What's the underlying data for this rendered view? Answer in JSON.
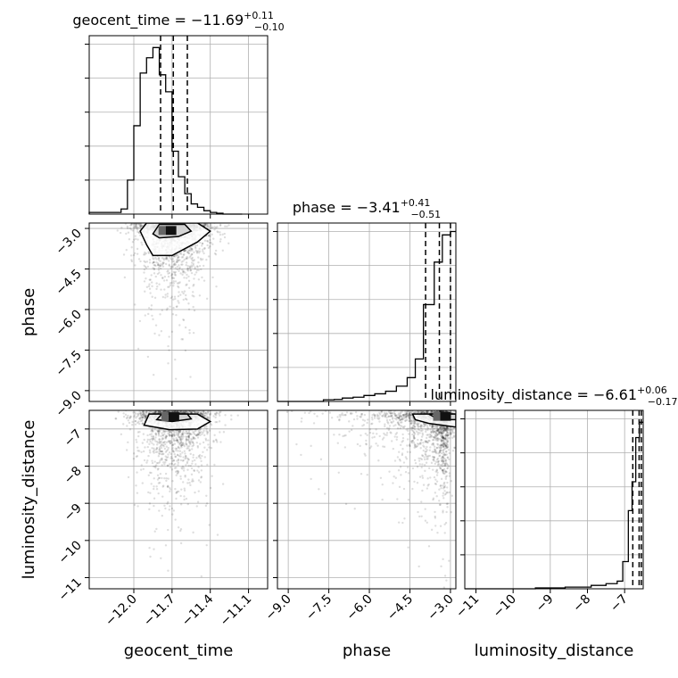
{
  "chart_data": {
    "type": "corner",
    "parameters": [
      "geocent_time",
      "phase",
      "luminosity_distance"
    ],
    "titles": [
      {
        "prefix": "geocent_time = ",
        "value": "−11.69",
        "upper": "+0.11",
        "lower": "−0.10"
      },
      {
        "prefix": "phase = ",
        "value": "−3.41",
        "upper": "+0.41",
        "lower": "−0.51"
      },
      {
        "prefix": "luminosity_distance = ",
        "value": "−6.61",
        "upper": "+0.06",
        "lower": "−0.17"
      }
    ],
    "axes": {
      "geocent_time": {
        "range": [
          -12.35,
          -10.95
        ],
        "ticks": [
          -12.0,
          -11.7,
          -11.4,
          -11.1
        ],
        "tick_labels": [
          "−12.0",
          "−11.7",
          "−11.4",
          "−11.1"
        ]
      },
      "phase": {
        "range": [
          -9.4,
          -2.8
        ],
        "ticks": [
          -9.0,
          -7.5,
          -6.0,
          -4.5,
          -3.0
        ],
        "tick_labels": [
          "−9.0",
          "−7.5",
          "−6.0",
          "−4.5",
          "−3.0"
        ]
      },
      "luminosity_distance": {
        "range": [
          -11.3,
          -6.5
        ],
        "ticks": [
          -11,
          -10,
          -9,
          -8,
          -7
        ],
        "tick_labels": [
          "−11",
          "−10",
          "−9",
          "−8",
          "−7"
        ]
      }
    },
    "histograms": [
      {
        "param": "geocent_time",
        "edges": [
          -12.35,
          -12.1,
          -12.05,
          -12.0,
          -11.95,
          -11.9,
          -11.85,
          -11.8,
          -11.75,
          -11.7,
          -11.65,
          -11.6,
          -11.55,
          -11.5,
          -11.45,
          -11.4,
          -11.35,
          -11.3,
          -11.25,
          -11.2,
          -11.15
        ],
        "heights": [
          0.01,
          0.03,
          0.2,
          0.52,
          0.83,
          0.92,
          0.98,
          0.82,
          0.72,
          0.37,
          0.22,
          0.12,
          0.06,
          0.04,
          0.02,
          0.01,
          0.005,
          0.0,
          0.0,
          0.0
        ],
        "quantiles": [
          -11.79,
          -11.69,
          -11.58
        ]
      },
      {
        "param": "phase",
        "edges": [
          -9.4,
          -7.7,
          -7.3,
          -7.0,
          -6.6,
          -6.2,
          -5.8,
          -5.4,
          -5.0,
          -4.6,
          -4.3,
          -4.0,
          -3.6,
          -3.3,
          -3.0,
          -2.8
        ],
        "heights": [
          0.0,
          0.01,
          0.012,
          0.02,
          0.025,
          0.035,
          0.045,
          0.06,
          0.09,
          0.14,
          0.25,
          0.57,
          0.82,
          0.98,
          1.0
        ],
        "quantiles": [
          -3.92,
          -3.41,
          -3.0
        ]
      },
      {
        "param": "luminosity_distance",
        "edges": [
          -11.3,
          -9.4,
          -8.6,
          -7.9,
          -7.5,
          -7.2,
          -7.05,
          -6.9,
          -6.8,
          -6.7,
          -6.6,
          -6.5
        ],
        "heights": [
          0.0,
          0.005,
          0.01,
          0.02,
          0.03,
          0.045,
          0.16,
          0.46,
          0.63,
          0.89,
          0.98
        ],
        "quantiles": [
          -6.78,
          -6.61,
          -6.55
        ]
      }
    ],
    "scatter_2d": [
      {
        "x": "geocent_time",
        "y": "phase",
        "x_center": -11.69,
        "x_sigma": 0.14,
        "y_mode": -2.9,
        "y_tail_scale": 1.3,
        "n_points": 2000
      },
      {
        "x": "geocent_time",
        "y": "luminosity_distance",
        "x_center": -11.69,
        "x_sigma": 0.14,
        "y_mode": -6.62,
        "y_tail_scale": 1.0,
        "n_points": 2000
      },
      {
        "x": "phase",
        "y": "luminosity_distance",
        "x_mode": -3.1,
        "x_tail_scale": 1.3,
        "y_mode": -6.62,
        "y_tail_scale": 1.0,
        "n_points": 2000
      }
    ],
    "contours_2d": [
      {
        "x": "geocent_time",
        "y": "phase",
        "levels": [
          [
            [
              -11.9,
              -3.6
            ],
            [
              -11.95,
              -3.1
            ],
            [
              -11.9,
              -2.8
            ],
            [
              -11.5,
              -2.8
            ],
            [
              -11.4,
              -3.1
            ],
            [
              -11.5,
              -3.5
            ],
            [
              -11.7,
              -4.0
            ],
            [
              -11.85,
              -4.0
            ]
          ],
          [
            [
              -11.85,
              -3.2
            ],
            [
              -11.8,
              -2.85
            ],
            [
              -11.6,
              -2.85
            ],
            [
              -11.55,
              -3.1
            ],
            [
              -11.65,
              -3.3
            ],
            [
              -11.8,
              -3.35
            ]
          ]
        ]
      },
      {
        "x": "geocent_time",
        "y": "luminosity_distance",
        "levels": [
          [
            [
              -11.92,
              -6.9
            ],
            [
              -11.88,
              -6.6
            ],
            [
              -11.5,
              -6.6
            ],
            [
              -11.4,
              -6.8
            ],
            [
              -11.5,
              -7.0
            ],
            [
              -11.72,
              -7.02
            ]
          ],
          [
            [
              -11.82,
              -6.75
            ],
            [
              -11.78,
              -6.6
            ],
            [
              -11.58,
              -6.6
            ],
            [
              -11.55,
              -6.73
            ],
            [
              -11.7,
              -6.8
            ]
          ]
        ]
      },
      {
        "x": "phase",
        "y": "luminosity_distance",
        "levels": [
          [
            [
              -4.4,
              -6.6
            ],
            [
              -4.3,
              -6.75
            ],
            [
              -3.8,
              -6.85
            ],
            [
              -3.3,
              -6.9
            ],
            [
              -2.8,
              -6.95
            ],
            [
              -2.8,
              -6.6
            ]
          ],
          [
            [
              -3.8,
              -6.6
            ],
            [
              -3.5,
              -6.72
            ],
            [
              -3.0,
              -6.75
            ],
            [
              -2.8,
              -6.75
            ],
            [
              -2.8,
              -6.6
            ]
          ]
        ]
      }
    ],
    "grid": true
  }
}
